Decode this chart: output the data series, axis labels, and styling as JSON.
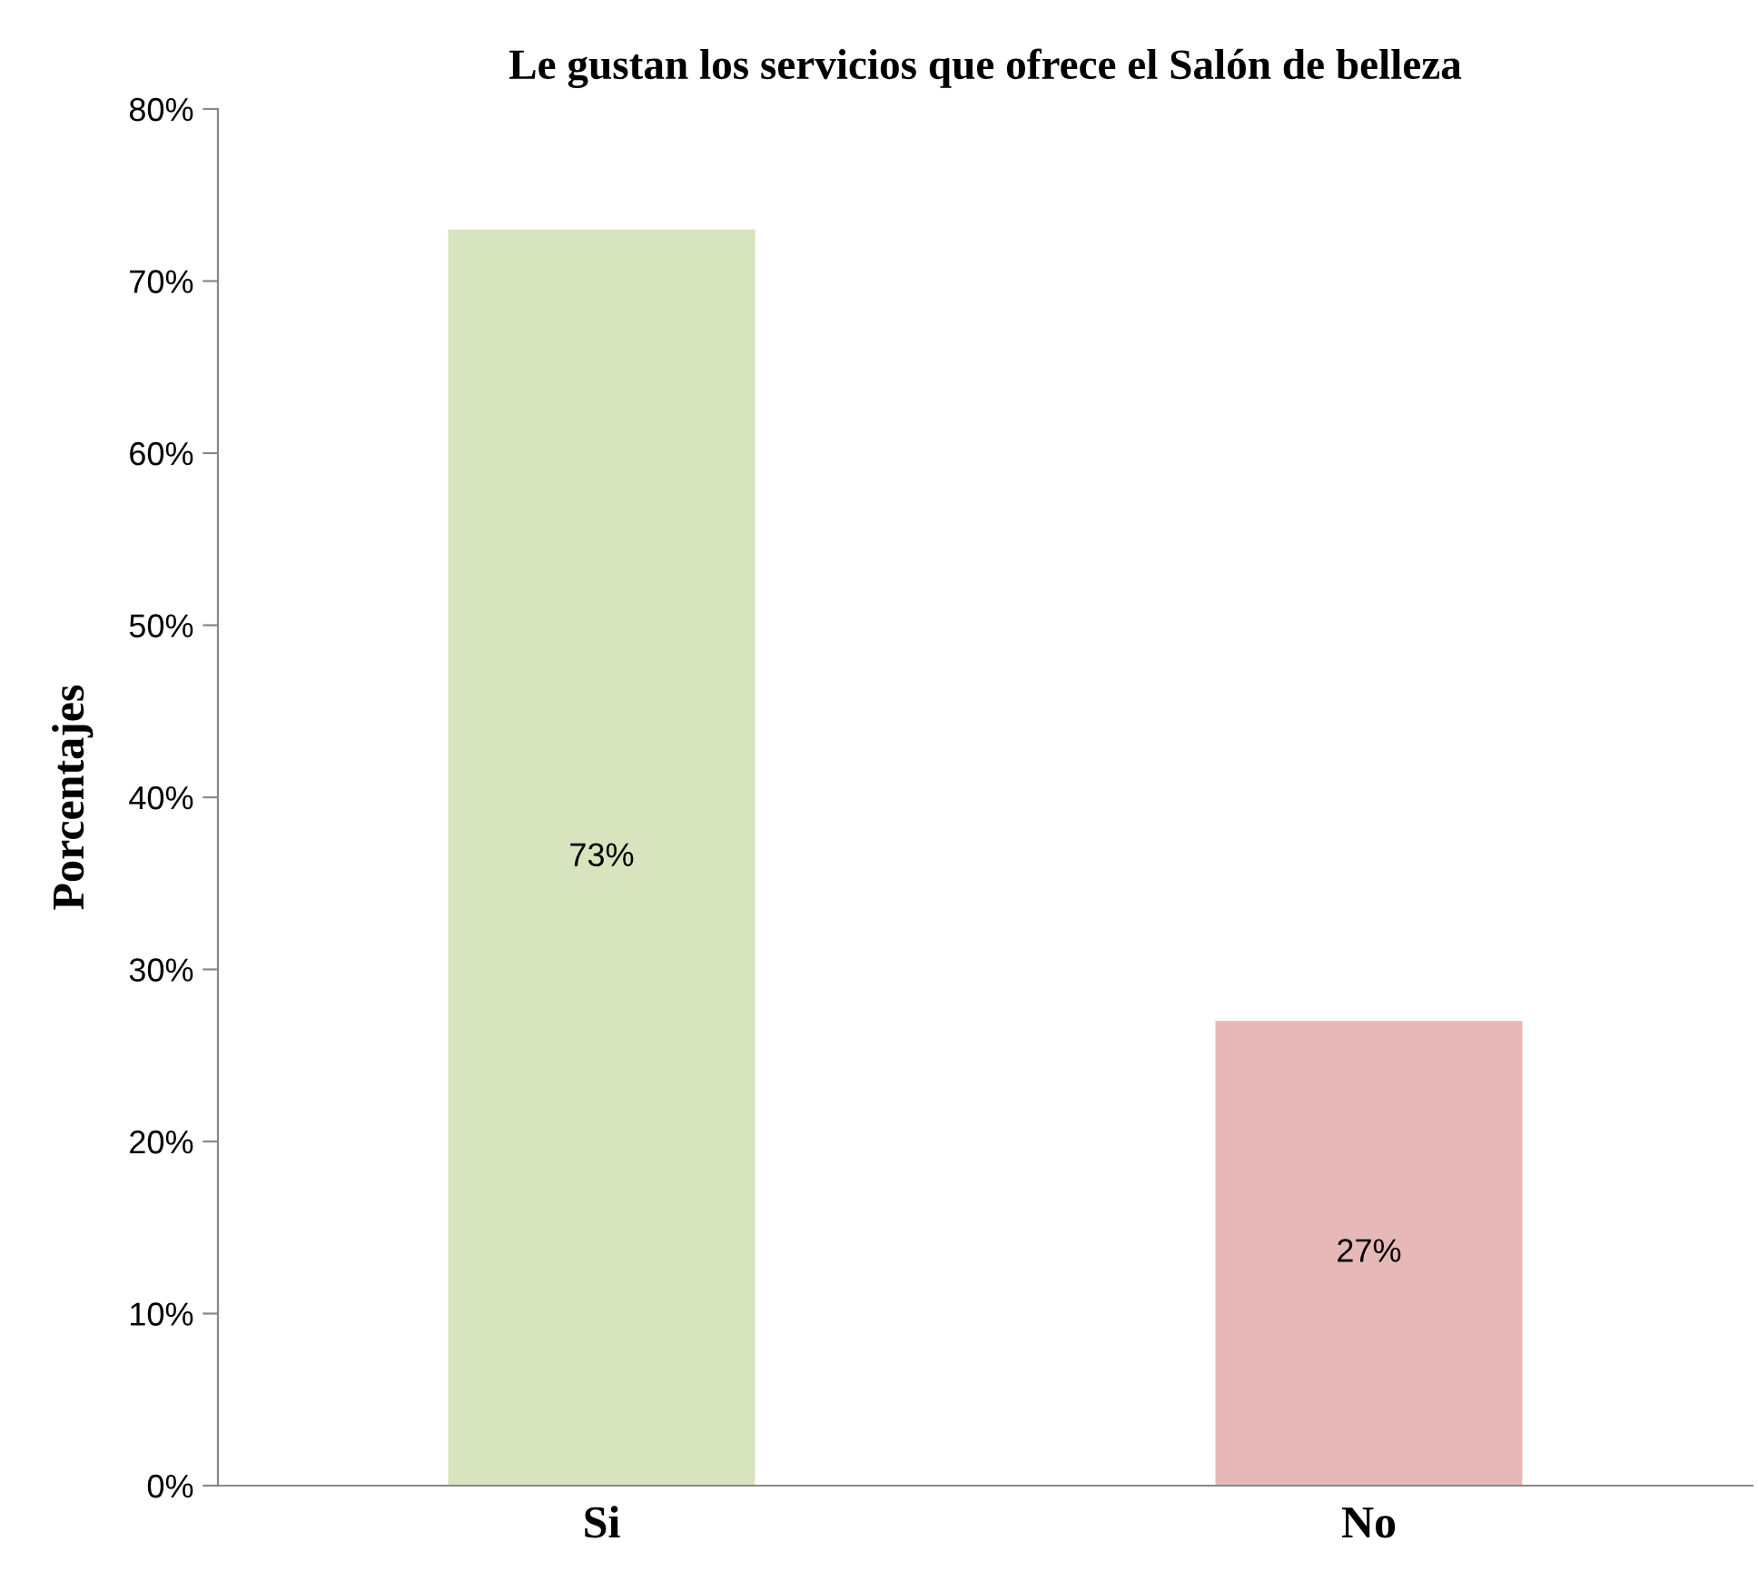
{
  "chart_data": {
    "type": "bar",
    "title": "Le gustan los servicios que ofrece el Salón de belleza",
    "ylabel": "Porcentajes",
    "categories": [
      "Si",
      "No"
    ],
    "values": [
      73,
      27
    ],
    "colors": [
      "#d7e4bd",
      "#e6b9b8"
    ],
    "value_labels": [
      "73%",
      "27%"
    ],
    "ylim": [
      0,
      80
    ],
    "yticks": [
      {
        "value": 0,
        "label": "0%"
      },
      {
        "value": 10,
        "label": "10%"
      },
      {
        "value": 20,
        "label": "20%"
      },
      {
        "value": 30,
        "label": "30%"
      },
      {
        "value": 40,
        "label": "40%"
      },
      {
        "value": 50,
        "label": "50%"
      },
      {
        "value": 60,
        "label": "60%"
      },
      {
        "value": 70,
        "label": "70%"
      },
      {
        "value": 80,
        "label": "80%"
      }
    ],
    "grid": false,
    "legend": false
  }
}
